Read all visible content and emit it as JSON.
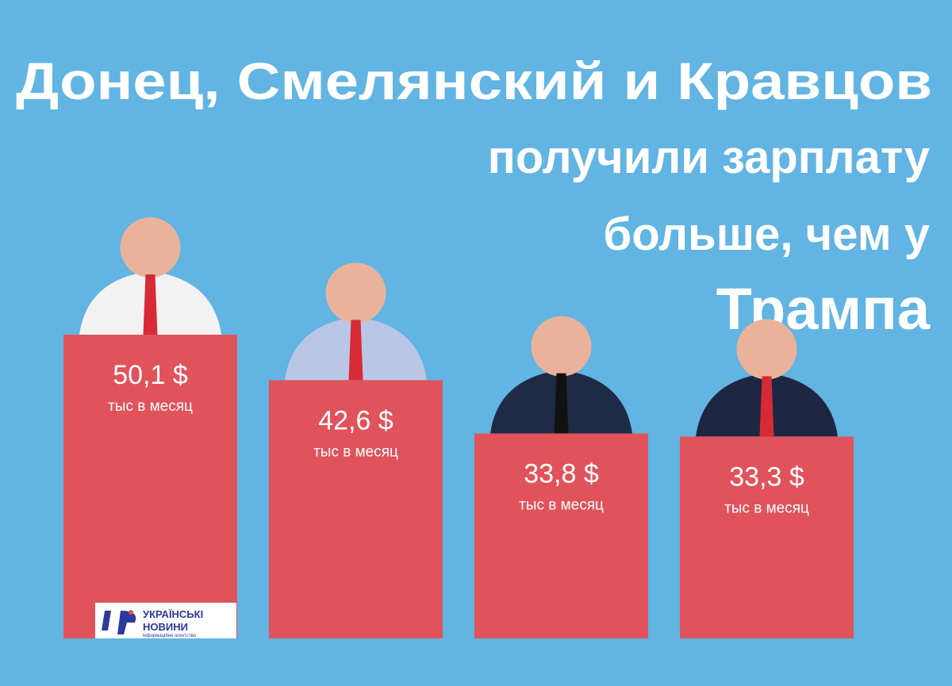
{
  "chart_data": {
    "type": "bar",
    "title_lines": [
      "Донец, Смелянский и Кравцов",
      "получили зарплату",
      "больше, чем у",
      "Трампа"
    ],
    "values": [
      50.1,
      42.6,
      33.8,
      33.3
    ],
    "value_labels": [
      "50,1 $",
      "42,6 $",
      "33,8 $",
      "33,3 $"
    ],
    "unit_label": "тыс в месяц",
    "color": "#e0535b",
    "logo": {
      "name_lines": [
        "УКРАЇНСЬКІ",
        "НОВИНИ"
      ],
      "tagline": "інформаційне агентство"
    }
  }
}
